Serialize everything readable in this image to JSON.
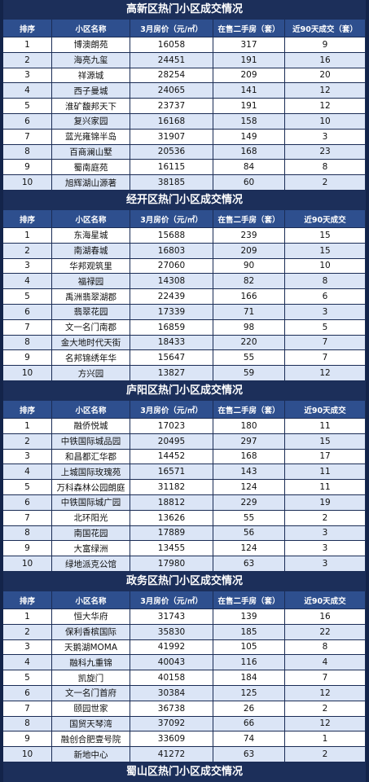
{
  "sections": [
    {
      "title": "高新区热门小区成交情况",
      "headers": [
        "排序",
        "小区名称",
        "3月房价（元/㎡）",
        "在售二手房（套）",
        "近90天成交（套）"
      ],
      "rows": [
        [
          1,
          "博澳朗苑",
          16058,
          317,
          9
        ],
        [
          2,
          "海亮九玺",
          24451,
          191,
          16
        ],
        [
          3,
          "祥源城",
          28254,
          209,
          20
        ],
        [
          4,
          "西子曼城",
          24065,
          141,
          12
        ],
        [
          5,
          "淮矿馥邦天下",
          23737,
          191,
          12
        ],
        [
          6,
          "复兴家园",
          16168,
          158,
          10
        ],
        [
          7,
          "蓝光雍锦半岛",
          31907,
          149,
          3
        ],
        [
          8,
          "百商澜山墅",
          20536,
          168,
          23
        ],
        [
          9,
          "蜀南庭苑",
          16115,
          84,
          8
        ],
        [
          10,
          "旭辉湖山源著",
          38185,
          60,
          2
        ]
      ]
    },
    {
      "title": "经开区热门小区成交情况",
      "headers": [
        "排序",
        "小区名称",
        "3月房价（元/㎡）",
        "在售二手房（套）",
        "近90天成交"
      ],
      "rows": [
        [
          1,
          "东海星城",
          15688,
          239,
          15
        ],
        [
          2,
          "南湖春城",
          16803,
          209,
          15
        ],
        [
          3,
          "华邦观筑里",
          27060,
          90,
          10
        ],
        [
          4,
          "福禄园",
          14308,
          82,
          8
        ],
        [
          5,
          "禹洲翡翠湖郡",
          22439,
          166,
          6
        ],
        [
          6,
          "翡翠花园",
          17339,
          71,
          3
        ],
        [
          7,
          "文一名门南郡",
          16859,
          98,
          5
        ],
        [
          8,
          "金大地时代天街",
          18433,
          220,
          7
        ],
        [
          9,
          "名邦锦绣年华",
          15647,
          55,
          7
        ],
        [
          10,
          "方兴园",
          13827,
          59,
          12
        ]
      ]
    },
    {
      "title": "庐阳区热门小区成交情况",
      "headers": [
        "排序",
        "小区名称",
        "3月房价（元/㎡）",
        "在售二手房（套）",
        "近90天成交"
      ],
      "rows": [
        [
          1,
          "融侨悦城",
          17023,
          180,
          11
        ],
        [
          2,
          "中铁国际城品园",
          20495,
          297,
          15
        ],
        [
          3,
          "和昌都汇华郡",
          14452,
          168,
          17
        ],
        [
          4,
          "上城国际玫瑰苑",
          16571,
          143,
          11
        ],
        [
          5,
          "万科森林公园朗庭",
          31182,
          124,
          11
        ],
        [
          6,
          "中铁国际城广园",
          18812,
          229,
          19
        ],
        [
          7,
          "北环阳光",
          13626,
          55,
          2
        ],
        [
          8,
          "南国花园",
          17889,
          56,
          3
        ],
        [
          9,
          "大富绿洲",
          13455,
          124,
          3
        ],
        [
          10,
          "绿地派克公馆",
          17980,
          63,
          3
        ]
      ]
    },
    {
      "title": "政务区热门小区成交情况",
      "headers": [
        "排序",
        "小区名称",
        "3月房价（元/㎡）",
        "在售二手房（套）",
        "近90天成交"
      ],
      "rows": [
        [
          1,
          "恒大华府",
          31743,
          139,
          16
        ],
        [
          2,
          "保利香槟国际",
          35830,
          185,
          22
        ],
        [
          3,
          "天鹅湖MOMA",
          41992,
          105,
          8
        ],
        [
          4,
          "融科九重锦",
          40043,
          116,
          4
        ],
        [
          5,
          "凯旋门",
          40158,
          184,
          7
        ],
        [
          6,
          "文一名门首府",
          30384,
          125,
          12
        ],
        [
          7,
          "颐园世家",
          36738,
          26,
          2
        ],
        [
          8,
          "国贸天琴湾",
          37092,
          66,
          12
        ],
        [
          9,
          "融创合肥壹号院",
          33609,
          74,
          1
        ],
        [
          10,
          "新地中心",
          41272,
          63,
          2
        ]
      ]
    },
    {
      "title": "蜀山区热门小区成交情况"
    }
  ]
}
